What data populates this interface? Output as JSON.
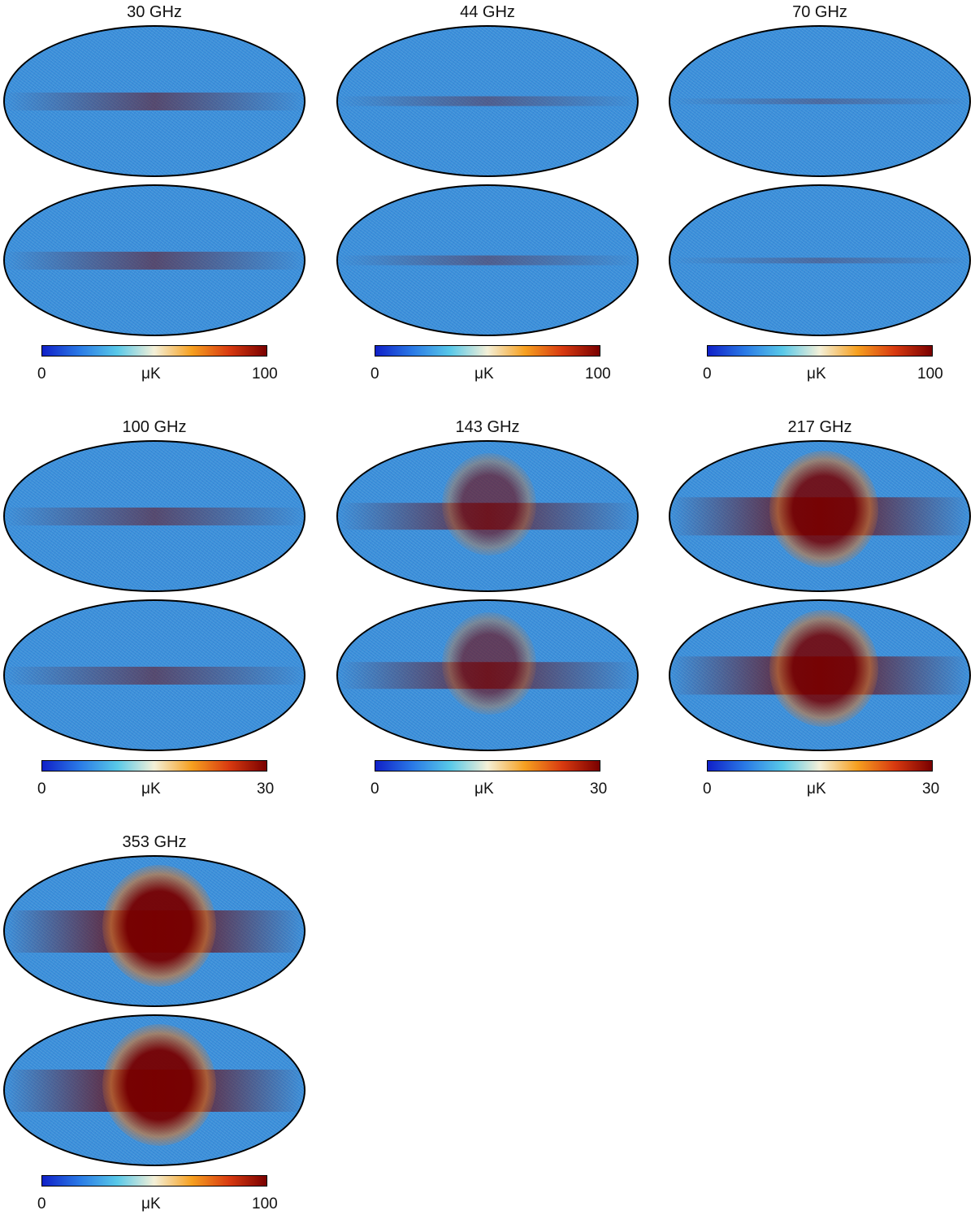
{
  "panels": [
    {
      "freq": "30 GHz",
      "cb_min": "0",
      "cb_unit": "μK",
      "cb_max": "100",
      "intensity": 0.35
    },
    {
      "freq": "44 GHz",
      "cb_min": "0",
      "cb_unit": "μK",
      "cb_max": "100",
      "intensity": 0.15
    },
    {
      "freq": "70 GHz",
      "cb_min": "0",
      "cb_unit": "μK",
      "cb_max": "100",
      "intensity": 0.03
    },
    {
      "freq": "100 GHz",
      "cb_min": "0",
      "cb_unit": "μK",
      "cb_max": "30",
      "intensity": 0.35
    },
    {
      "freq": "143 GHz",
      "cb_min": "0",
      "cb_unit": "μK",
      "cb_max": "30",
      "intensity": 0.6
    },
    {
      "freq": "217 GHz",
      "cb_min": "0",
      "cb_unit": "μK",
      "cb_max": "30",
      "intensity": 0.9
    },
    {
      "freq": "353 GHz",
      "cb_min": "0",
      "cb_unit": "μK",
      "cb_max": "100",
      "intensity": 1.0
    }
  ],
  "colors": {
    "cmap": [
      "#1020c8",
      "#2a7ae6",
      "#58c8e8",
      "#f4f0d8",
      "#f6a020",
      "#d83a10",
      "#7a0000"
    ],
    "background": "#3a8fd9"
  }
}
